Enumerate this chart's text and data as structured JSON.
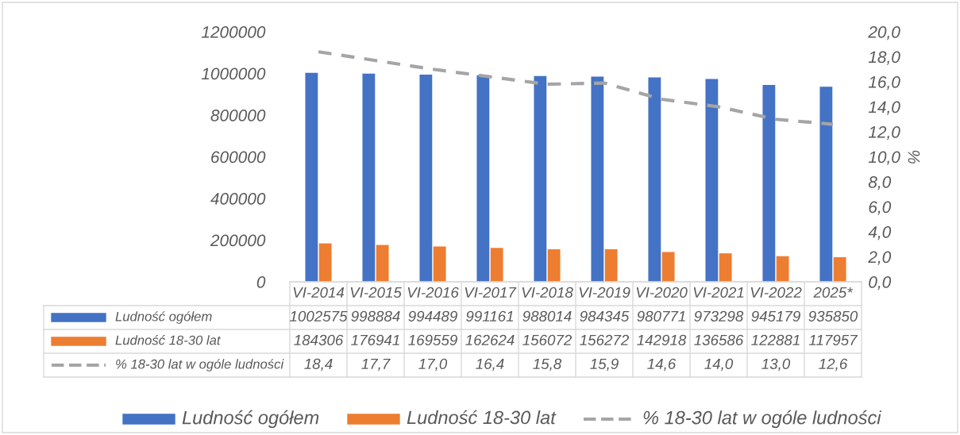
{
  "chart_data": {
    "type": "bar",
    "categories": [
      "VI-2014",
      "VI-2015",
      "VI-2016",
      "VI-2017",
      "VI-2018",
      "VI-2019",
      "VI-2020",
      "VI-2021",
      "VI-2022",
      "2025*"
    ],
    "series": [
      {
        "name": "Ludność ogółem",
        "color": "#4472c4",
        "values": [
          1002575,
          998884,
          994489,
          991161,
          988014,
          984345,
          980771,
          973298,
          945179,
          935850
        ],
        "value_labels": [
          "1002575",
          "998884",
          "994489",
          "991161",
          "988014",
          "984345",
          "980771",
          "973298",
          "945179",
          "935850"
        ]
      },
      {
        "name": "Ludność 18-30 lat",
        "color": "#ed7d31",
        "values": [
          184306,
          176941,
          169559,
          162624,
          156072,
          156272,
          142918,
          136586,
          122881,
          117957
        ],
        "value_labels": [
          "184306",
          "176941",
          "169559",
          "162624",
          "156072",
          "156272",
          "142918",
          "136586",
          "122881",
          "117957"
        ]
      },
      {
        "name": "% 18-30 lat w ogóle ludności",
        "type": "line",
        "axis": "y2",
        "line_style": "dashed",
        "color": "#a5a5a5",
        "values": [
          18.4,
          17.7,
          17.0,
          16.4,
          15.8,
          15.9,
          14.6,
          14.0,
          13.0,
          12.6
        ],
        "value_labels": [
          "18,4",
          "17,7",
          "17,0",
          "16,4",
          "15,8",
          "15,9",
          "14,6",
          "14,0",
          "13,0",
          "12,6"
        ]
      }
    ],
    "ylim": [
      0,
      1200000
    ],
    "yticks": [
      0,
      200000,
      400000,
      600000,
      800000,
      1000000,
      1200000
    ],
    "y2lim": [
      0,
      20
    ],
    "y2ticks": [
      {
        "value": 0,
        "label": "0,0"
      },
      {
        "value": 2,
        "label": "2,0"
      },
      {
        "value": 4,
        "label": "4,0"
      },
      {
        "value": 6,
        "label": "6,0"
      },
      {
        "value": 8,
        "label": "8,0"
      },
      {
        "value": 10,
        "label": "10,0"
      },
      {
        "value": 12,
        "label": "12,0"
      },
      {
        "value": 14,
        "label": "14,0"
      },
      {
        "value": 16,
        "label": "16,0"
      },
      {
        "value": 18,
        "label": "18,0"
      },
      {
        "value": 20,
        "label": "20,0"
      }
    ],
    "y2label": "%",
    "legend": "bottom",
    "grid": false
  }
}
